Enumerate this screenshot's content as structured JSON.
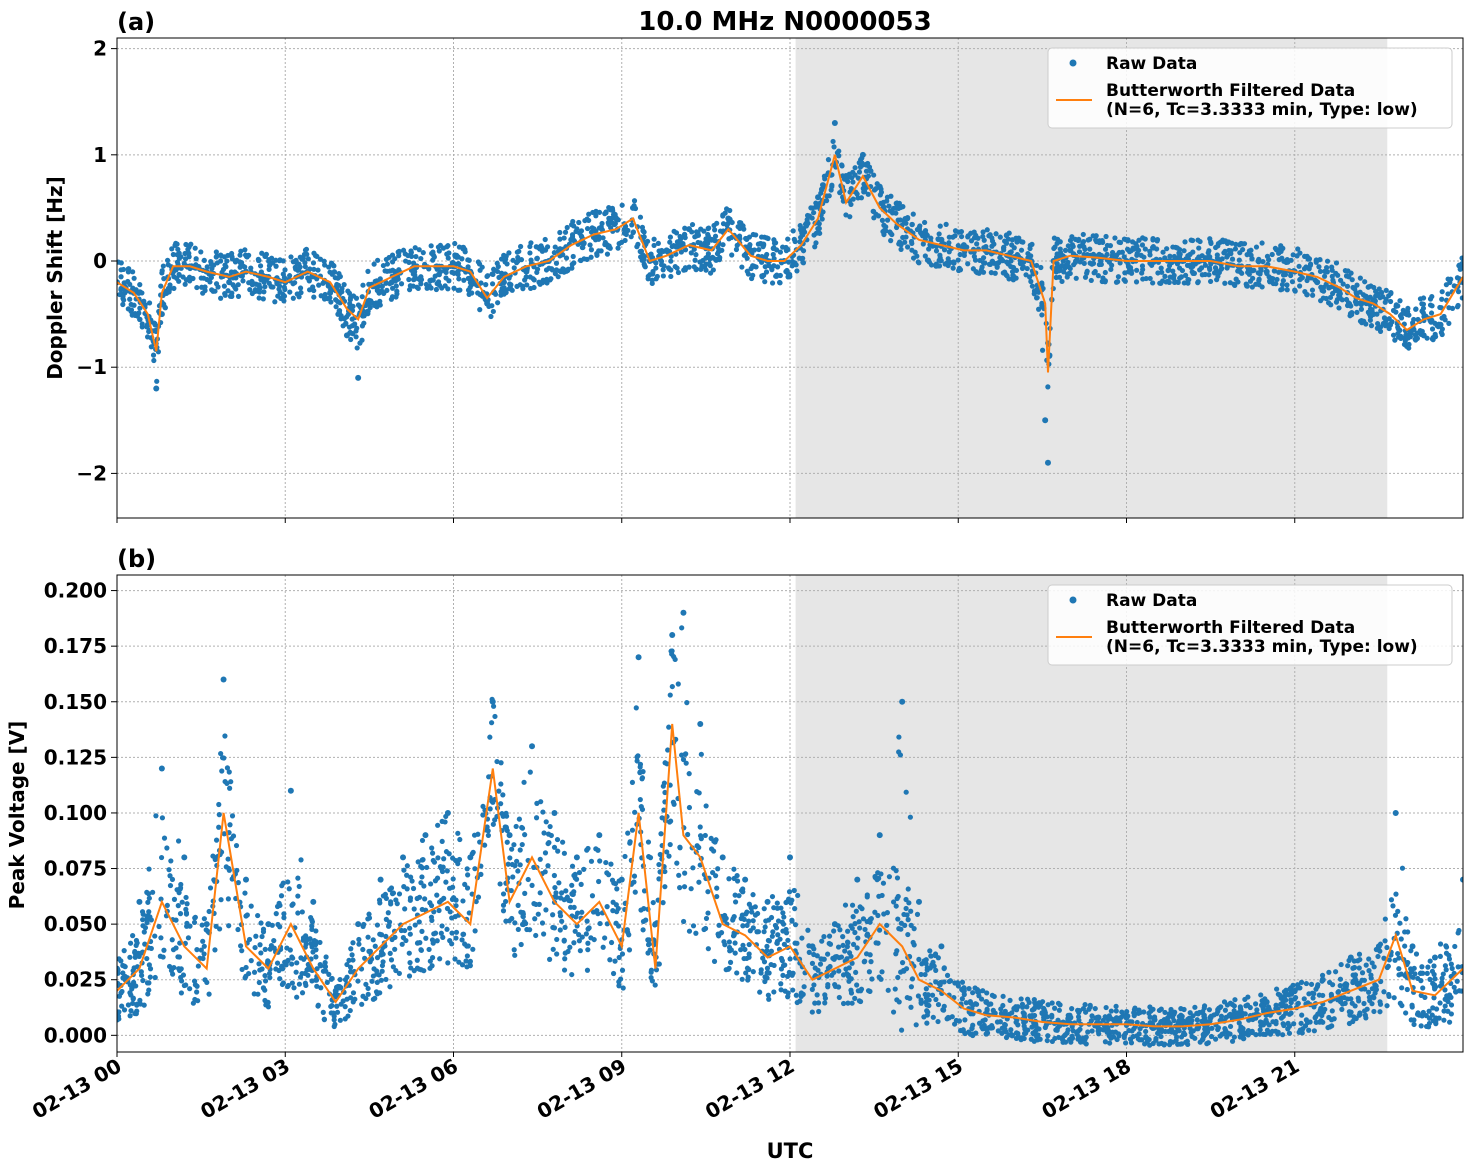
{
  "figure_title": "10.0 MHz N0000053",
  "xlabel": "UTC",
  "x_ticks": [
    "02-13 00",
    "02-13 03",
    "02-13 06",
    "02-13 09",
    "02-13 12",
    "02-13 15",
    "02-13 18",
    "02-13 21"
  ],
  "colors": {
    "raw": "#1f77b4",
    "filtered": "#ff7f0e",
    "shade": "#e6e6e6",
    "grid": "#b0b0b0"
  },
  "legend": {
    "raw_label": "Raw Data",
    "filtered_label_line1": "Butterworth Filtered Data",
    "filtered_label_line2": "(N=6, Tc=3.3333 min, Type: low)",
    "placement": "top-right"
  },
  "chart_data": [
    {
      "type": "scatter",
      "panel_label": "(a)",
      "title": "10.0 MHz N0000053",
      "xlabel": "",
      "ylabel": "Doppler Shift [Hz]",
      "xlim": [
        0,
        24
      ],
      "ylim": [
        -2.42,
        2.1
      ],
      "x_unit": "hours UTC on 02-13",
      "y_ticks": [
        2,
        1,
        0,
        -1,
        -2
      ],
      "y_tick_labels": [
        "2",
        "1",
        "0",
        "−1",
        "−2"
      ],
      "shaded_interval_hours": [
        12.1,
        22.65
      ],
      "grid": true,
      "series": [
        {
          "name": "Raw Data",
          "x": [
            0.0,
            0.3,
            0.55,
            0.7,
            0.8,
            1.0,
            1.3,
            1.6,
            2.0,
            2.3,
            2.7,
            3.0,
            3.4,
            3.8,
            4.1,
            4.3,
            4.5,
            4.9,
            5.3,
            5.7,
            6.0,
            6.3,
            6.6,
            6.9,
            7.3,
            7.7,
            8.1,
            8.5,
            8.9,
            9.2,
            9.5,
            9.8,
            10.2,
            10.6,
            10.9,
            11.3,
            11.6,
            11.9,
            12.2,
            12.5,
            12.8,
            13.0,
            13.3,
            13.6,
            13.9,
            14.3,
            14.7,
            15.1,
            15.5,
            15.9,
            16.3,
            16.55,
            16.6,
            16.7,
            17.0,
            17.5,
            18.0,
            18.5,
            19.0,
            19.5,
            20.0,
            20.5,
            21.0,
            21.4,
            21.8,
            22.1,
            22.4,
            22.7,
            23.0,
            23.3,
            23.6,
            24.0
          ],
          "y": [
            -0.2,
            -0.3,
            -0.6,
            -1.2,
            -0.5,
            -0.1,
            -0.05,
            -0.1,
            -0.2,
            -0.1,
            -0.15,
            -0.2,
            -0.1,
            -0.3,
            -0.7,
            -1.1,
            -0.4,
            -0.2,
            -0.1,
            -0.05,
            -0.05,
            -0.1,
            -0.4,
            -0.2,
            -0.1,
            0.0,
            0.2,
            0.3,
            0.4,
            0.5,
            0.0,
            0.1,
            0.3,
            0.2,
            0.4,
            0.1,
            0.0,
            0.0,
            0.3,
            0.6,
            1.3,
            0.8,
            1.0,
            0.7,
            0.5,
            0.3,
            0.2,
            0.15,
            0.1,
            0.05,
            0.0,
            -1.5,
            -1.9,
            0.0,
            0.1,
            0.05,
            0.0,
            0.0,
            0.0,
            0.0,
            -0.05,
            -0.1,
            -0.1,
            -0.2,
            -0.3,
            -0.4,
            -0.5,
            -0.6,
            -0.8,
            -0.7,
            -0.6,
            -0.2
          ]
        },
        {
          "name": "Butterworth Filtered Data",
          "x": [
            0.0,
            0.3,
            0.55,
            0.7,
            0.8,
            1.0,
            1.3,
            1.6,
            2.0,
            2.3,
            2.7,
            3.0,
            3.4,
            3.8,
            4.1,
            4.3,
            4.5,
            4.9,
            5.3,
            5.7,
            6.0,
            6.3,
            6.6,
            6.9,
            7.3,
            7.7,
            8.1,
            8.5,
            8.9,
            9.2,
            9.5,
            9.8,
            10.2,
            10.6,
            10.9,
            11.3,
            11.6,
            11.9,
            12.2,
            12.5,
            12.8,
            13.0,
            13.3,
            13.6,
            13.9,
            14.3,
            14.7,
            15.1,
            15.5,
            15.9,
            16.3,
            16.55,
            16.6,
            16.7,
            17.0,
            17.5,
            18.0,
            18.5,
            19.0,
            19.5,
            20.0,
            20.5,
            21.0,
            21.4,
            21.8,
            22.1,
            22.4,
            22.7,
            23.0,
            23.3,
            23.6,
            24.0
          ],
          "y": [
            -0.2,
            -0.3,
            -0.5,
            -0.85,
            -0.3,
            -0.05,
            -0.05,
            -0.1,
            -0.15,
            -0.1,
            -0.15,
            -0.2,
            -0.1,
            -0.2,
            -0.45,
            -0.55,
            -0.25,
            -0.15,
            -0.05,
            -0.05,
            -0.05,
            -0.1,
            -0.35,
            -0.15,
            -0.05,
            0.0,
            0.15,
            0.25,
            0.3,
            0.4,
            0.0,
            0.05,
            0.15,
            0.1,
            0.3,
            0.05,
            0.0,
            0.0,
            0.15,
            0.4,
            1.0,
            0.55,
            0.8,
            0.5,
            0.35,
            0.2,
            0.15,
            0.1,
            0.1,
            0.05,
            0.0,
            -0.4,
            -1.05,
            0.0,
            0.05,
            0.03,
            0.0,
            0.0,
            0.0,
            0.0,
            -0.05,
            -0.05,
            -0.1,
            -0.15,
            -0.25,
            -0.35,
            -0.4,
            -0.5,
            -0.65,
            -0.55,
            -0.5,
            -0.15
          ]
        }
      ]
    },
    {
      "type": "scatter",
      "panel_label": "(b)",
      "xlabel": "UTC",
      "ylabel": "Peak Voltage [V]",
      "xlim": [
        0,
        24
      ],
      "ylim": [
        -0.0075,
        0.207
      ],
      "x_unit": "hours UTC on 02-13",
      "y_ticks": [
        0.2,
        0.175,
        0.15,
        0.125,
        0.1,
        0.075,
        0.05,
        0.025,
        0.0
      ],
      "y_tick_labels": [
        "0.200",
        "0.175",
        "0.150",
        "0.125",
        "0.100",
        "0.075",
        "0.050",
        "0.025",
        "0.000"
      ],
      "shaded_interval_hours": [
        12.1,
        22.65
      ],
      "grid": true,
      "series": [
        {
          "name": "Raw Data",
          "x": [
            0.0,
            0.4,
            0.8,
            1.2,
            1.6,
            1.9,
            2.3,
            2.7,
            3.1,
            3.5,
            3.9,
            4.3,
            4.7,
            5.1,
            5.5,
            5.9,
            6.3,
            6.7,
            7.0,
            7.4,
            7.8,
            8.2,
            8.6,
            9.0,
            9.3,
            9.6,
            9.9,
            10.1,
            10.4,
            10.8,
            11.2,
            11.6,
            12.0,
            12.4,
            12.8,
            13.2,
            13.6,
            14.0,
            14.3,
            14.7,
            15.1,
            15.5,
            16.0,
            16.5,
            17.0,
            17.5,
            18.0,
            18.5,
            19.0,
            19.5,
            20.0,
            20.5,
            21.0,
            21.5,
            22.0,
            22.5,
            22.8,
            23.1,
            23.5,
            24.0
          ],
          "y": [
            0.03,
            0.06,
            0.12,
            0.08,
            0.05,
            0.16,
            0.07,
            0.05,
            0.11,
            0.06,
            0.02,
            0.05,
            0.07,
            0.08,
            0.09,
            0.1,
            0.08,
            0.15,
            0.09,
            0.13,
            0.1,
            0.08,
            0.09,
            0.07,
            0.17,
            0.05,
            0.18,
            0.19,
            0.14,
            0.08,
            0.07,
            0.06,
            0.08,
            0.04,
            0.05,
            0.07,
            0.09,
            0.15,
            0.06,
            0.04,
            0.02,
            0.015,
            0.012,
            0.01,
            0.008,
            0.008,
            0.008,
            0.007,
            0.006,
            0.008,
            0.01,
            0.015,
            0.02,
            0.025,
            0.035,
            0.04,
            0.1,
            0.04,
            0.035,
            0.07
          ]
        },
        {
          "name": "Butterworth Filtered Data",
          "x": [
            0.0,
            0.4,
            0.8,
            1.2,
            1.6,
            1.9,
            2.3,
            2.7,
            3.1,
            3.5,
            3.9,
            4.3,
            4.7,
            5.1,
            5.5,
            5.9,
            6.3,
            6.7,
            7.0,
            7.4,
            7.8,
            8.2,
            8.6,
            9.0,
            9.3,
            9.6,
            9.9,
            10.1,
            10.4,
            10.8,
            11.2,
            11.6,
            12.0,
            12.4,
            12.8,
            13.2,
            13.6,
            14.0,
            14.3,
            14.7,
            15.1,
            15.5,
            16.0,
            16.5,
            17.0,
            17.5,
            18.0,
            18.5,
            19.0,
            19.5,
            20.0,
            20.5,
            21.0,
            21.5,
            22.0,
            22.5,
            22.8,
            23.1,
            23.5,
            24.0
          ],
          "y": [
            0.02,
            0.03,
            0.06,
            0.04,
            0.03,
            0.1,
            0.04,
            0.03,
            0.05,
            0.03,
            0.015,
            0.03,
            0.04,
            0.05,
            0.055,
            0.06,
            0.05,
            0.12,
            0.06,
            0.08,
            0.06,
            0.05,
            0.06,
            0.04,
            0.1,
            0.03,
            0.14,
            0.09,
            0.08,
            0.05,
            0.045,
            0.035,
            0.04,
            0.025,
            0.03,
            0.035,
            0.05,
            0.04,
            0.025,
            0.02,
            0.012,
            0.009,
            0.008,
            0.006,
            0.005,
            0.005,
            0.005,
            0.004,
            0.004,
            0.005,
            0.007,
            0.01,
            0.012,
            0.015,
            0.02,
            0.025,
            0.045,
            0.02,
            0.018,
            0.03
          ]
        }
      ]
    }
  ]
}
